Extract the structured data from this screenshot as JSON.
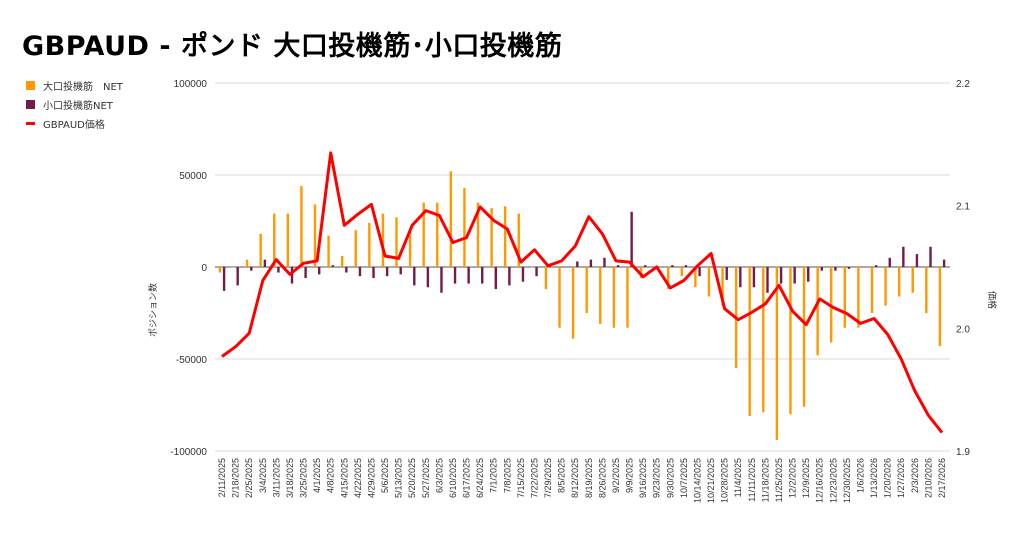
{
  "title": "GBPAUD - ポンド 大口投機筋･小口投機筋",
  "legend": [
    {
      "label": "大口投機筋　NET",
      "color": "#ff9900"
    },
    {
      "label": "小口投機筋NET",
      "color": "#741b47"
    },
    {
      "label": "GBPAUD価格",
      "color": "#ff0000"
    }
  ],
  "chart_data": {
    "type": "bar+line",
    "title": "GBPAUD - ポンド 大口投機筋･小口投機筋",
    "ylabel": "ポジション数",
    "y2label": "価格",
    "ylim": [
      -100000,
      100000
    ],
    "y2lim": [
      1.9,
      2.2
    ],
    "yticks": [
      "100000",
      "50000",
      "0",
      "-50000",
      "-100000"
    ],
    "y2ticks": [
      "2.2",
      "2.1",
      "2.0",
      "1.9"
    ],
    "grid": true,
    "legend_position": "left",
    "categories": [
      "2/11/2025",
      "2/18/2025",
      "2/25/2025",
      "3/4/2025",
      "3/11/2025",
      "3/18/2025",
      "3/25/2025",
      "4/1/2025",
      "4/8/2025",
      "4/15/2025",
      "4/22/2025",
      "4/29/2025",
      "5/6/2025",
      "5/13/2025",
      "5/20/2025",
      "5/27/2025",
      "6/3/2025",
      "6/10/2025",
      "6/17/2025",
      "6/24/2025",
      "7/1/2025",
      "7/8/2025",
      "7/15/2025",
      "7/22/2025",
      "7/29/2025",
      "8/5/2025",
      "8/12/2025",
      "8/19/2025",
      "8/26/2025",
      "9/2/2025",
      "9/9/2025",
      "9/16/2025",
      "9/23/2025",
      "9/30/2025",
      "10/7/2025",
      "10/14/2025",
      "10/21/2025",
      "10/28/2025",
      "11/4/2025",
      "11/11/2025",
      "11/18/2025",
      "11/25/2025",
      "12/2/2025",
      "12/9/2025",
      "12/16/2025",
      "12/23/2025",
      "12/30/2025",
      "1/6/2026",
      "1/13/2026",
      "1/20/2026",
      "1/27/2026",
      "2/3/2026",
      "2/10/2026",
      "2/17/2026"
    ],
    "series": [
      {
        "name": "大口投機筋　NET",
        "type": "bar",
        "axis": "left",
        "values": [
          -3000,
          0,
          4000,
          18000,
          29000,
          29000,
          44000,
          34000,
          17000,
          6000,
          20000,
          24000,
          29000,
          27000,
          19000,
          35000,
          35000,
          52000,
          43000,
          35000,
          32000,
          33000,
          29000,
          0,
          -12000,
          -33000,
          -39000,
          -25000,
          -31000,
          -33000,
          -33000,
          -6000,
          0,
          -12000,
          -5000,
          -11000,
          -16000,
          -21000,
          -55000,
          -81000,
          -79000,
          -94000,
          -80000,
          -76000,
          -48000,
          -41000,
          -33000,
          -33000,
          -25000,
          -21000,
          -16000,
          -14000,
          -25000,
          -43000
        ]
      },
      {
        "name": "小口投機筋NET",
        "type": "bar",
        "axis": "left",
        "values": [
          -13000,
          -10000,
          -2000,
          4000,
          -3000,
          -9000,
          -6000,
          -4000,
          1000,
          -3000,
          -5000,
          -6000,
          -5000,
          -4000,
          -10000,
          -11000,
          -14000,
          -9000,
          -9000,
          -9000,
          -12000,
          -10000,
          -8000,
          -5000,
          0,
          0,
          3000,
          4000,
          5000,
          1000,
          30000,
          1000,
          0,
          1000,
          1000,
          -5000,
          0,
          -7000,
          -11000,
          -11000,
          -14000,
          -9000,
          -9000,
          -8000,
          -2000,
          -2000,
          -1000,
          0,
          1000,
          5000,
          11000,
          7000,
          11000,
          4000
        ]
      },
      {
        "name": "GBPAUD価格",
        "type": "line",
        "axis": "right",
        "values": [
          1.977,
          1.985,
          1.996,
          2.039,
          2.056,
          2.044,
          2.053,
          2.055,
          2.143,
          2.084,
          2.093,
          2.101,
          2.059,
          2.057,
          2.084,
          2.096,
          2.092,
          2.07,
          2.074,
          2.099,
          2.088,
          2.081,
          2.054,
          2.064,
          2.051,
          2.055,
          2.067,
          2.091,
          2.077,
          2.055,
          2.054,
          2.042,
          2.05,
          2.033,
          2.039,
          2.051,
          2.061,
          2.016,
          2.007,
          2.013,
          2.02,
          2.035,
          2.014,
          2.003,
          2.024,
          2.017,
          2.012,
          2.004,
          2.008,
          1.995,
          1.975,
          1.949,
          1.929,
          1.915
        ]
      }
    ]
  }
}
